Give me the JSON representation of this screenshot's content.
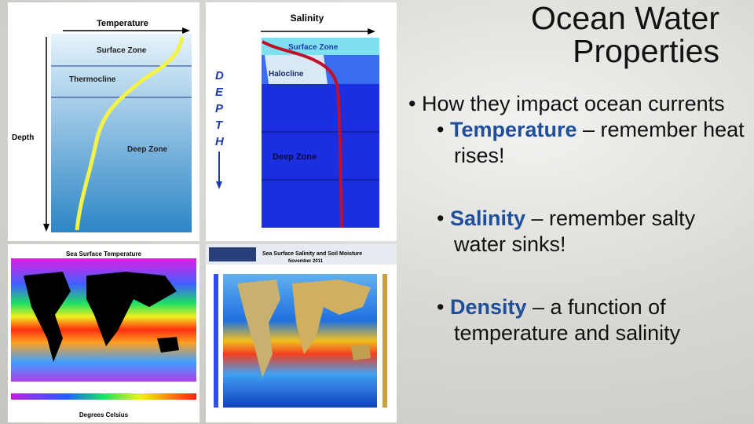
{
  "title": [
    "Ocean Water",
    "Properties"
  ],
  "bullets": {
    "main": "How they impact ocean currents",
    "items": [
      {
        "term": "Temperature",
        "text": " – remember heat rises!"
      },
      {
        "term": "Salinity",
        "text": " – remember salty water sinks!"
      },
      {
        "term": "Density",
        "text": " – a function of temperature and salinity"
      }
    ]
  },
  "temperature_diagram": {
    "axis": "Temperature",
    "depth": "Depth",
    "zones": [
      "Surface Zone",
      "Thermocline",
      "Deep Zone"
    ]
  },
  "salinity_diagram": {
    "axis": "Salinity",
    "depth": [
      "D",
      "E",
      "P",
      "T",
      "H"
    ],
    "zones": [
      "Surface Zone",
      "Halocline",
      "Deep Zone"
    ]
  },
  "sst_map": {
    "title": "Sea Surface Temperature",
    "legend": "Degrees Celsius"
  },
  "sss_map": {
    "title": "Sea Surface Salinity and Soil Moisture",
    "subtitle": "November 2011"
  }
}
